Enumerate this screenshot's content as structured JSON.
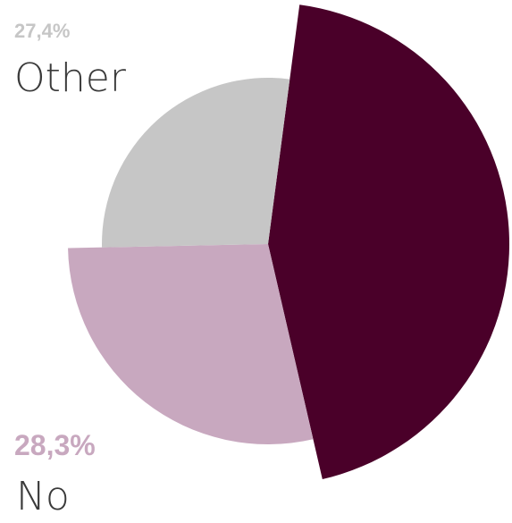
{
  "chart_data": {
    "type": "pie",
    "variant": "exploded-radius",
    "slices": [
      {
        "label": "",
        "value": 44.3,
        "color": "#4a0029"
      },
      {
        "label": "No",
        "value": 28.3,
        "value_label": "28,3%",
        "color": "#c8a8bf"
      },
      {
        "label": "Other",
        "value": 27.4,
        "value_label": "27,4%",
        "color": "#c6c6c6"
      }
    ]
  }
}
